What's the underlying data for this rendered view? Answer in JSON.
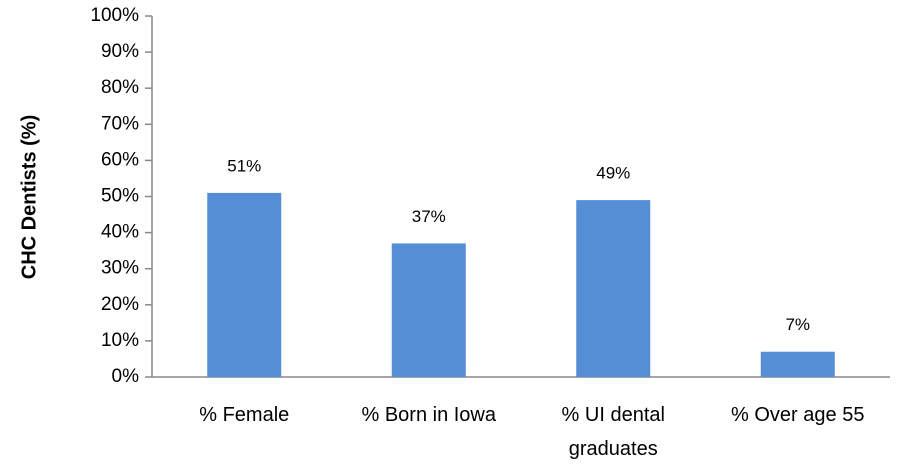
{
  "chart_data": {
    "type": "bar",
    "y_label": "CHC Dentists (%)",
    "categories": [
      "% Female",
      "% Born in Iowa",
      "% UI dental graduates",
      "% Over age 55"
    ],
    "values": [
      51,
      37,
      49,
      7
    ],
    "value_labels": [
      "51%",
      "37%",
      "49%",
      "7%"
    ],
    "color": "#558ed5",
    "ylim": [
      0,
      100
    ],
    "yticks": [
      {
        "value": 0,
        "label": "0%"
      },
      {
        "value": 10,
        "label": "10%"
      },
      {
        "value": 20,
        "label": "20%"
      },
      {
        "value": 30,
        "label": "30%"
      },
      {
        "value": 40,
        "label": "40%"
      },
      {
        "value": 50,
        "label": "50%"
      },
      {
        "value": 60,
        "label": "60%"
      },
      {
        "value": 70,
        "label": "70%"
      },
      {
        "value": 80,
        "label": "80%"
      },
      {
        "value": 90,
        "label": "90%"
      },
      {
        "value": 100,
        "label": "100%"
      }
    ],
    "grid": false
  }
}
